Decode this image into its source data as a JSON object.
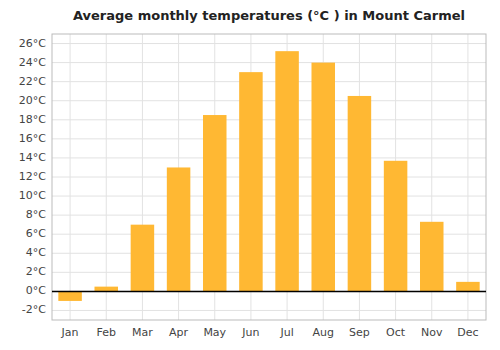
{
  "chart_data": {
    "type": "bar",
    "title": "Average monthly temperatures (°C ) in Mount Carmel",
    "categories": [
      "Jan",
      "Feb",
      "Mar",
      "Apr",
      "May",
      "Jun",
      "Jul",
      "Aug",
      "Sep",
      "Oct",
      "Nov",
      "Dec"
    ],
    "values": [
      -1.0,
      0.5,
      7.0,
      13.0,
      18.5,
      23.0,
      25.2,
      24.0,
      20.5,
      13.7,
      7.3,
      1.0
    ],
    "color": "#FFB833",
    "ylim": [
      -3.0,
      27.0
    ],
    "yticks": [
      {
        "value": -2,
        "label": "-2°C"
      },
      {
        "value": 0,
        "label": "0°C"
      },
      {
        "value": 2,
        "label": "2°C"
      },
      {
        "value": 4,
        "label": "4°C"
      },
      {
        "value": 6,
        "label": "6°C"
      },
      {
        "value": 8,
        "label": "8°C"
      },
      {
        "value": 10,
        "label": "10°C"
      },
      {
        "value": 12,
        "label": "12°C"
      },
      {
        "value": 14,
        "label": "14°C"
      },
      {
        "value": 16,
        "label": "16°C"
      },
      {
        "value": 18,
        "label": "18°C"
      },
      {
        "value": 20,
        "label": "20°C"
      },
      {
        "value": 22,
        "label": "22°C"
      },
      {
        "value": 24,
        "label": "24°C"
      },
      {
        "value": 26,
        "label": "26°C"
      }
    ],
    "grid": true
  }
}
